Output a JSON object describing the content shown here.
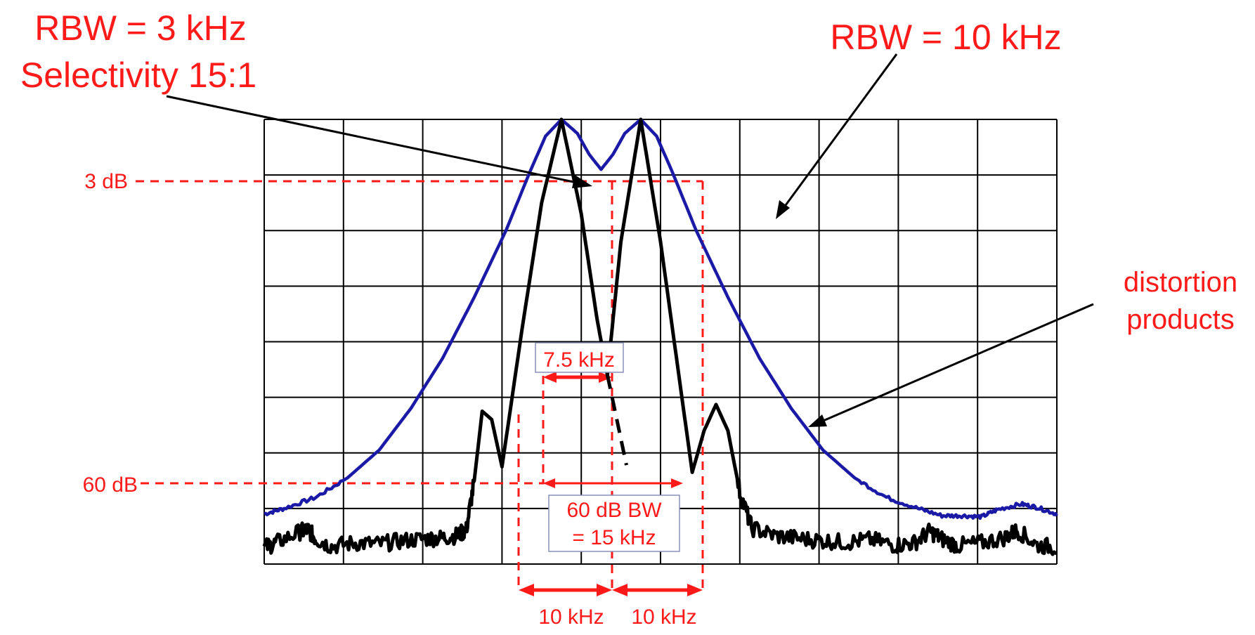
{
  "colors": {
    "rbw10_trace": "#1a1aa6",
    "rbw3_trace": "#000000",
    "annotation": "#ff1a1a",
    "grid": "#000000"
  },
  "annotations": {
    "rbw3_line1": "RBW = 3 kHz",
    "rbw3_line2": "Selectivity 15:1",
    "rbw10": "RBW = 10 kHz",
    "distortion_line1": "distortion",
    "distortion_line2": "products",
    "label_3db": "3 dB",
    "label_60db": "60 dB",
    "bw_7_5": "7.5 kHz",
    "bw60_line1": "60 dB BW",
    "bw60_line2": "= 15 kHz",
    "spacing_left": "10 kHz",
    "spacing_right": "10 kHz"
  },
  "chart_data": {
    "type": "line",
    "title": "",
    "xlabel": "",
    "ylabel": "",
    "x_unit": "kHz",
    "y_unit": "dB",
    "xlim": [
      -37.5,
      62.5
    ],
    "ylim": [
      -80,
      0
    ],
    "grid": true,
    "grid_divisions": {
      "x": 10,
      "y": 8
    },
    "tone_frequencies_khz": [
      0,
      10
    ],
    "distortion_product_frequencies_khz": [
      -10,
      20
    ],
    "series": [
      {
        "name": "RBW = 10 kHz",
        "color": "#1a1aa6",
        "points": [
          [
            -37.5,
            -71
          ],
          [
            -35,
            -70
          ],
          [
            -31,
            -68
          ],
          [
            -27,
            -64.5
          ],
          [
            -23,
            -59.5
          ],
          [
            -19,
            -52
          ],
          [
            -15,
            -43
          ],
          [
            -11,
            -32
          ],
          [
            -7,
            -20
          ],
          [
            -4,
            -9.5
          ],
          [
            -2,
            -3
          ],
          [
            0,
            0
          ],
          [
            2,
            -2.5
          ],
          [
            3.5,
            -6.3
          ],
          [
            5,
            -9
          ],
          [
            6.5,
            -6.3
          ],
          [
            8,
            -2.5
          ],
          [
            10,
            0
          ],
          [
            12,
            -3
          ],
          [
            14,
            -9.5
          ],
          [
            17,
            -20
          ],
          [
            21,
            -32
          ],
          [
            25,
            -43
          ],
          [
            29,
            -52
          ],
          [
            33,
            -59.5
          ],
          [
            37,
            -64.5
          ],
          [
            41,
            -68
          ],
          [
            45,
            -70
          ],
          [
            48,
            -71.3
          ],
          [
            50.5,
            -71.3
          ],
          [
            53,
            -71.5
          ],
          [
            55,
            -70.2
          ],
          [
            58,
            -69.2
          ],
          [
            60,
            -69.8
          ],
          [
            62.5,
            -71
          ]
        ]
      },
      {
        "name": "RBW = 3 kHz",
        "color": "#000000",
        "points": [
          [
            -37.5,
            -77
          ],
          [
            -36,
            -76.2
          ],
          [
            -33,
            -74.2
          ],
          [
            -32,
            -73.8
          ],
          [
            -31,
            -75.5
          ],
          [
            -29,
            -76.8
          ],
          [
            -26,
            -76.2
          ],
          [
            -23,
            -76.4
          ],
          [
            -20,
            -75.8
          ],
          [
            -17,
            -75.4
          ],
          [
            -15,
            -75.3
          ],
          [
            -13,
            -74.8
          ],
          [
            -12,
            -73.8
          ],
          [
            -11,
            -65
          ],
          [
            -10,
            -52.5
          ],
          [
            -8.8,
            -54
          ],
          [
            -7.5,
            -62.5
          ],
          [
            -5,
            -38
          ],
          [
            -2.5,
            -15
          ],
          [
            0,
            0
          ],
          [
            2.5,
            -17
          ],
          [
            4.5,
            -36
          ],
          [
            5.8,
            -46
          ],
          [
            7.5,
            -22
          ],
          [
            10,
            0
          ],
          [
            12.5,
            -22
          ],
          [
            15,
            -48
          ],
          [
            16.5,
            -63.5
          ],
          [
            18,
            -56
          ],
          [
            19.5,
            -51.3
          ],
          [
            21,
            -56
          ],
          [
            22.5,
            -67
          ],
          [
            24,
            -73.5
          ],
          [
            27,
            -74.9
          ],
          [
            30,
            -75.4
          ],
          [
            33,
            -75.8
          ],
          [
            36,
            -76.1
          ],
          [
            39,
            -75.6
          ],
          [
            42,
            -76.6
          ],
          [
            44.5,
            -76.2
          ],
          [
            46.5,
            -74.1
          ],
          [
            48,
            -75.5
          ],
          [
            50,
            -76.7
          ],
          [
            53,
            -76.2
          ],
          [
            56,
            -75.2
          ],
          [
            57.5,
            -73.9
          ],
          [
            60,
            -76.6
          ],
          [
            62.5,
            -77
          ]
        ],
        "masked_segment_points": [
          [
            5.8,
            -46
          ],
          [
            8.2,
            -62.2
          ]
        ]
      }
    ]
  }
}
